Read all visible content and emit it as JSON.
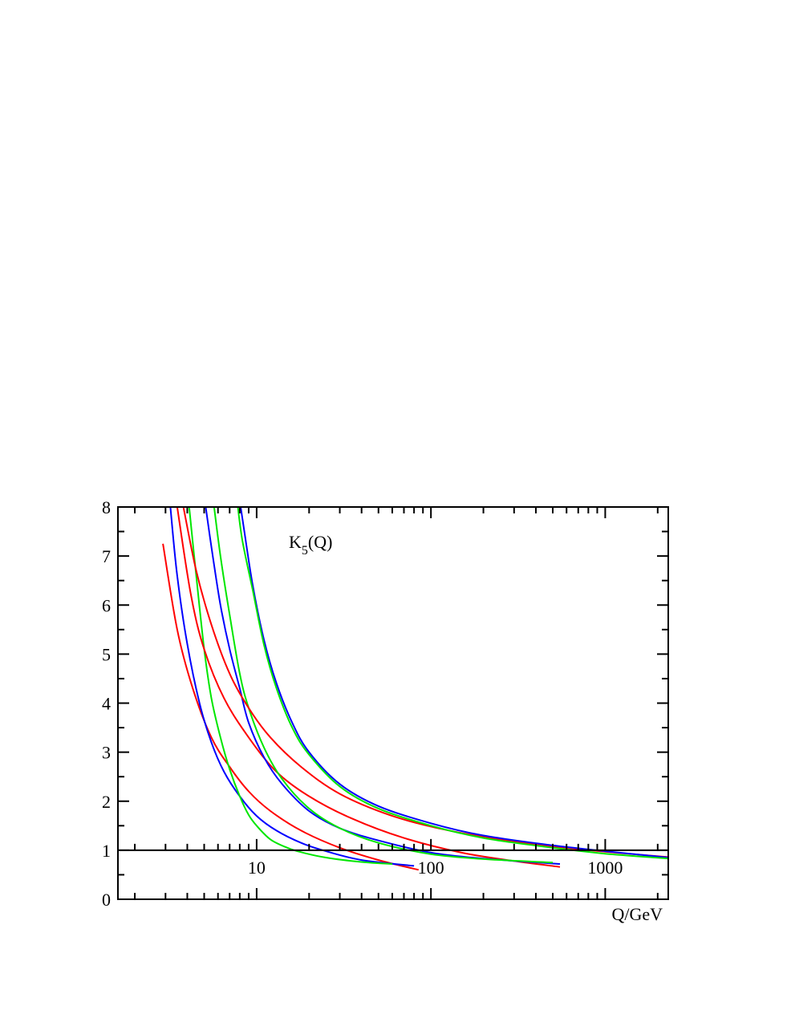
{
  "chart_data": {
    "type": "line",
    "title": "",
    "xlabel": "Q/GeV",
    "ylabel": "",
    "annotation": {
      "base": "K",
      "subscript": "5",
      "suffix": "(Q)"
    },
    "xscale": "log",
    "xlim": [
      1.6,
      2300
    ],
    "ylim": [
      0,
      8
    ],
    "xtick_labels": [
      "10",
      "100",
      "1000"
    ],
    "xticks": [
      10,
      100,
      1000
    ],
    "ytick_labels": [
      "0",
      "1",
      "2",
      "3",
      "4",
      "5",
      "6",
      "7",
      "8"
    ],
    "yticks": [
      0,
      1,
      2,
      3,
      4,
      5,
      6,
      7,
      8
    ],
    "reference_line_y": 1,
    "grid": false,
    "legend": "none",
    "series": [
      {
        "color": "#ff0000",
        "x": [
          2.9,
          3.5,
          4.3,
          5.5,
          7,
          9,
          12,
          18,
          30,
          50,
          85
        ],
        "y": [
          7.25,
          5.5,
          4.3,
          3.3,
          2.7,
          2.2,
          1.8,
          1.4,
          1.05,
          0.8,
          0.6
        ]
      },
      {
        "color": "#0000ff",
        "x": [
          3.2,
          3.5,
          4,
          4.7,
          5.5,
          6.5,
          8,
          10,
          13,
          18,
          25,
          40,
          80
        ],
        "y": [
          8,
          6.6,
          5.2,
          4.0,
          3.2,
          2.6,
          2.1,
          1.7,
          1.4,
          1.15,
          0.98,
          0.8,
          0.68
        ]
      },
      {
        "color": "#00e600",
        "x": [
          4.1,
          4.5,
          5,
          5.5,
          6.2,
          7,
          8,
          9,
          10,
          12,
          15,
          18,
          25,
          40,
          60
        ],
        "y": [
          8,
          6.6,
          5.1,
          4.1,
          3.3,
          2.65,
          2.1,
          1.72,
          1.5,
          1.22,
          1.05,
          0.96,
          0.85,
          0.76,
          0.72
        ]
      },
      {
        "color": "#ff0000",
        "x": [
          3.5,
          4.2,
          5,
          6.5,
          9,
          13,
          20,
          35,
          70,
          150,
          300,
          550
        ],
        "y": [
          8,
          6.2,
          5.1,
          4.1,
          3.3,
          2.6,
          2.1,
          1.65,
          1.25,
          0.95,
          0.78,
          0.66
        ]
      },
      {
        "color": "#0000ff",
        "x": [
          5.1,
          5.6,
          6.2,
          7,
          8,
          9,
          11,
          14,
          20,
          30,
          50,
          100,
          200,
          550
        ],
        "y": [
          8,
          7.0,
          6.0,
          5.1,
          4.3,
          3.6,
          2.9,
          2.35,
          1.8,
          1.45,
          1.2,
          0.95,
          0.83,
          0.72
        ]
      },
      {
        "color": "#00e600",
        "x": [
          5.7,
          6.2,
          7,
          8,
          9,
          11,
          14,
          20,
          30,
          50,
          100,
          200,
          500
        ],
        "y": [
          8,
          7.0,
          5.8,
          4.6,
          3.9,
          3.1,
          2.45,
          1.85,
          1.45,
          1.15,
          0.92,
          0.82,
          0.75
        ]
      },
      {
        "color": "#ff0000",
        "x": [
          3.8,
          4.5,
          5.5,
          7,
          9,
          12,
          18,
          30,
          60,
          120,
          250,
          500,
          1000,
          2300
        ],
        "y": [
          8,
          6.7,
          5.6,
          4.6,
          3.9,
          3.3,
          2.7,
          2.15,
          1.7,
          1.42,
          1.22,
          1.08,
          0.97,
          0.86
        ]
      },
      {
        "color": "#0000ff",
        "x": [
          8.1,
          8.5,
          9.5,
          11,
          13,
          16,
          20,
          30,
          50,
          100,
          200,
          500,
          1000,
          2300
        ],
        "y": [
          8,
          7.5,
          6.4,
          5.3,
          4.4,
          3.6,
          3.0,
          2.35,
          1.9,
          1.55,
          1.3,
          1.1,
          0.98,
          0.85
        ]
      },
      {
        "color": "#00e600",
        "x": [
          7.8,
          8.3,
          9.5,
          11,
          13,
          16,
          20,
          30,
          50,
          100,
          200,
          500,
          1000,
          2300
        ],
        "y": [
          8,
          7.3,
          6.3,
          5.2,
          4.3,
          3.5,
          2.95,
          2.3,
          1.85,
          1.5,
          1.25,
          1.05,
          0.93,
          0.83
        ]
      }
    ]
  }
}
